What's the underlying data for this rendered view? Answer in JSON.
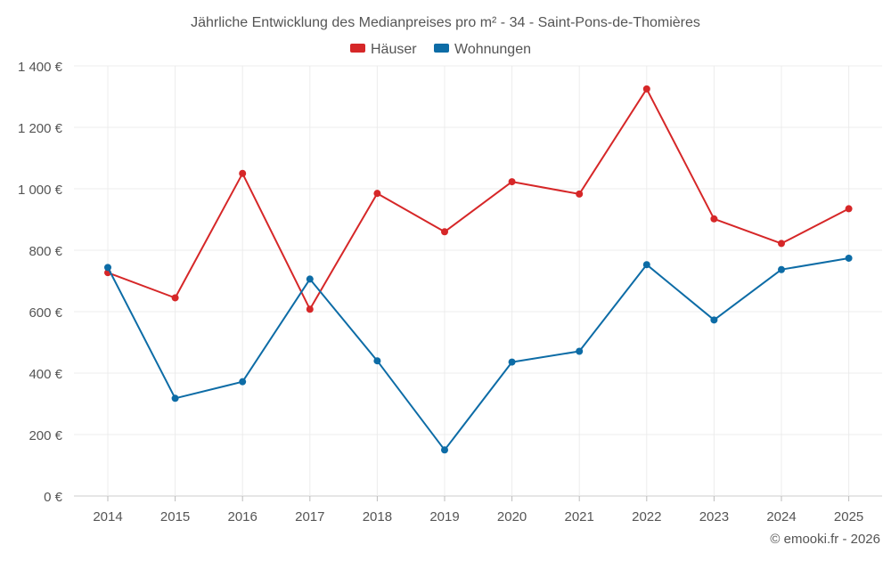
{
  "chart_data": {
    "type": "line",
    "title": "Jährliche Entwicklung des Medianpreises pro m² - 34 - Saint-Pons-de-Thomières",
    "categories": [
      "2014",
      "2015",
      "2016",
      "2017",
      "2018",
      "2019",
      "2020",
      "2021",
      "2022",
      "2023",
      "2024",
      "2025"
    ],
    "series": [
      {
        "name": "Häuser",
        "color": "#d62728",
        "values": [
          727,
          645,
          1050,
          608,
          985,
          860,
          1023,
          983,
          1325,
          902,
          822,
          935
        ]
      },
      {
        "name": "Wohnungen",
        "color": "#0d6ca6",
        "values": [
          744,
          318,
          372,
          706,
          440,
          150,
          436,
          471,
          753,
          573,
          737,
          774
        ]
      }
    ],
    "ylim": [
      0,
      1400
    ],
    "yticks": [
      0,
      200,
      400,
      600,
      800,
      1000,
      1200,
      1400
    ],
    "ytick_labels": [
      "0 €",
      "200 €",
      "400 €",
      "600 €",
      "800 €",
      "1 000 €",
      "1 200 €",
      "1 400 €"
    ],
    "xlabel": "",
    "ylabel": "",
    "grid": true,
    "legend_position": "top-center",
    "footer": "© emooki.fr - 2026"
  }
}
